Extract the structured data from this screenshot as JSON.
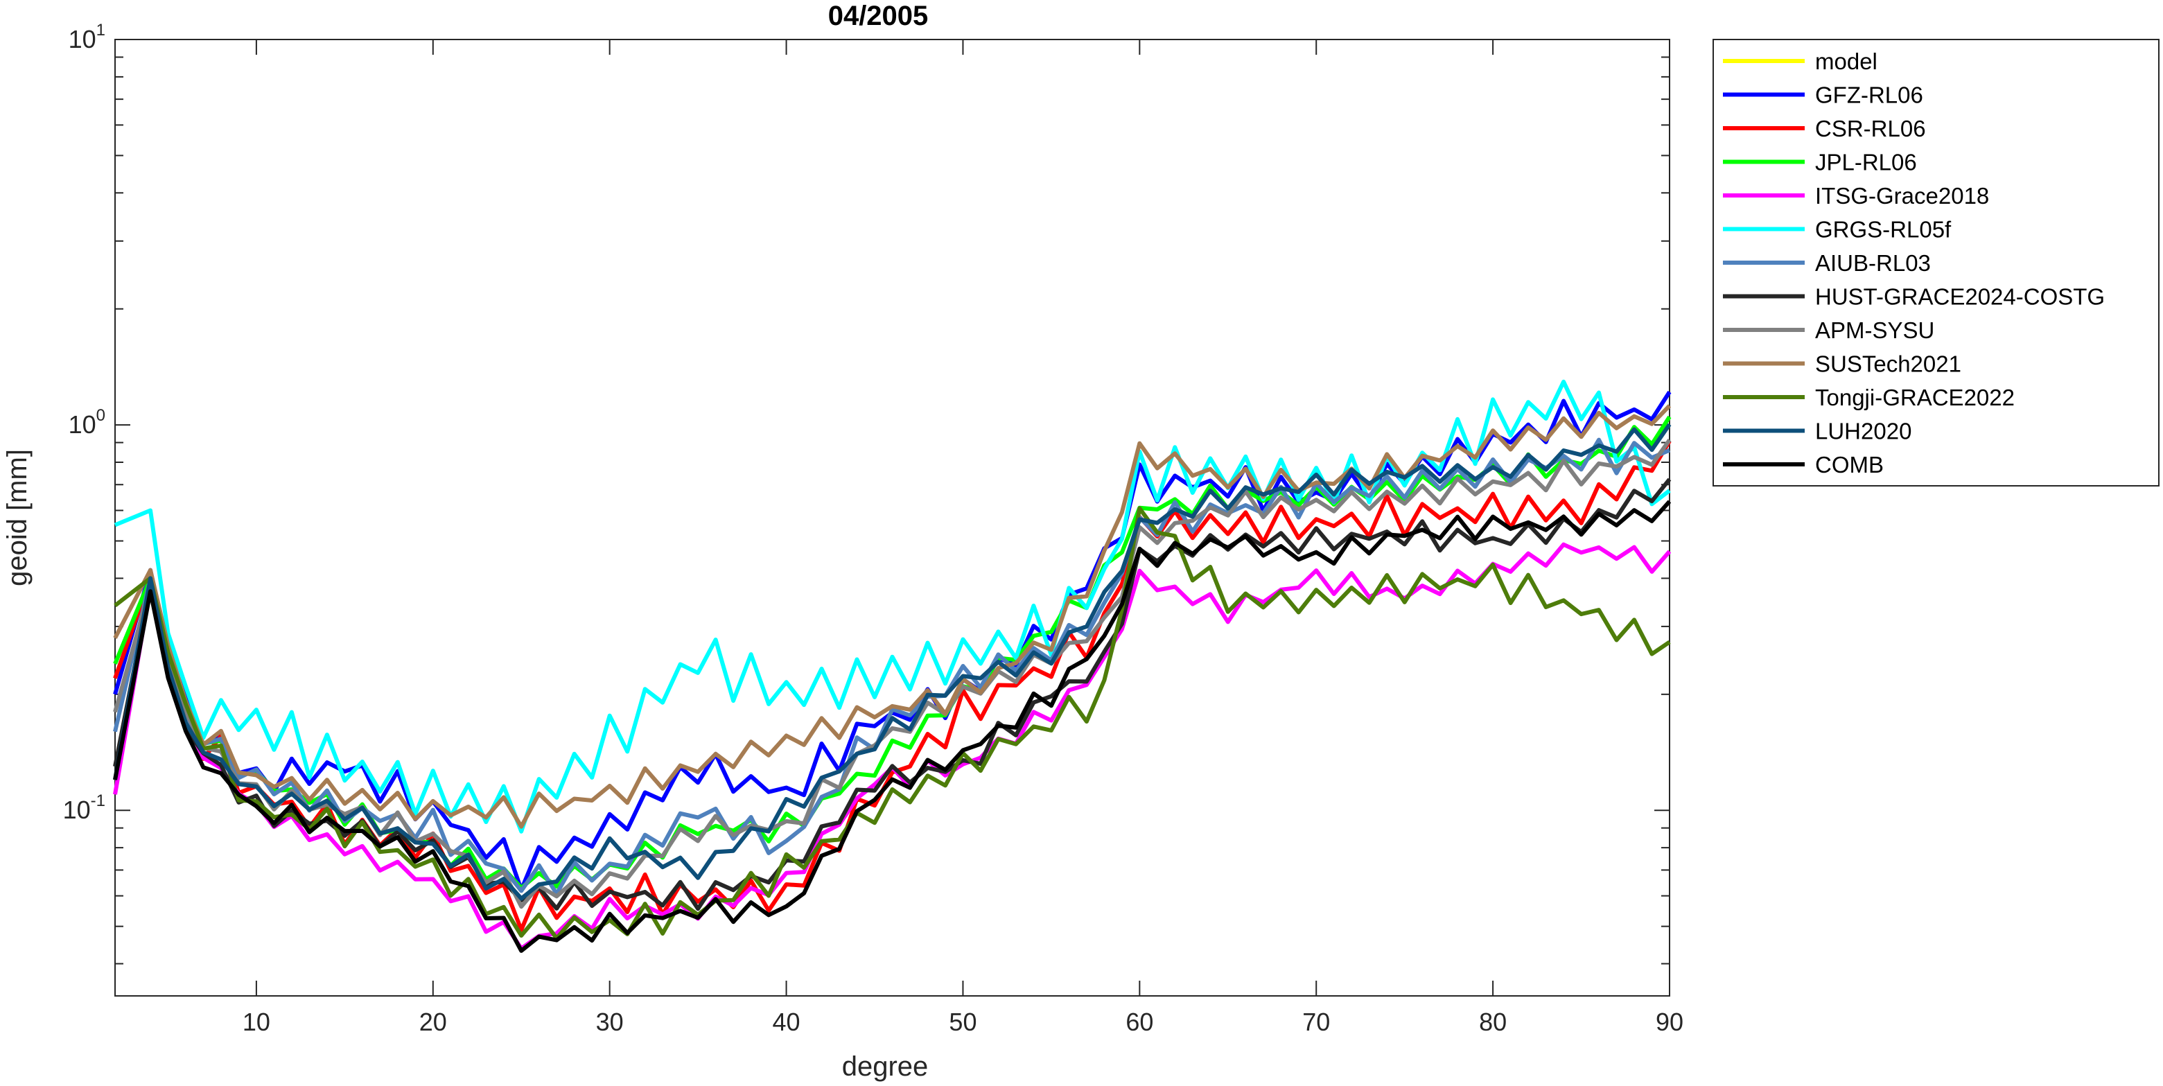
{
  "chart_data": {
    "type": "line",
    "title": "04/2005",
    "xlabel": "degree",
    "ylabel": "geoid [mm]",
    "xlim": [
      2,
      90
    ],
    "ylim": [
      0.033,
      10
    ],
    "yscale": "log",
    "grid": false,
    "legend_position": "outside-right",
    "x_ticks": [
      10,
      20,
      30,
      40,
      50,
      60,
      70,
      80,
      90
    ],
    "y_ticks": [
      {
        "value": 0.1,
        "base": "10",
        "exp": "-1"
      },
      {
        "value": 1,
        "base": "10",
        "exp": "0"
      },
      {
        "value": 10,
        "base": "10",
        "exp": "1"
      }
    ],
    "anchors": [
      2,
      4,
      6,
      10,
      15,
      20,
      25,
      30,
      35,
      40,
      45,
      50,
      55,
      58,
      60,
      65,
      70,
      75,
      80,
      85,
      90
    ],
    "series": [
      {
        "name": "model",
        "color": "#ffff00",
        "values": []
      },
      {
        "name": "GFZ-RL06",
        "color": "#0000ff",
        "values": [
          0.2,
          0.42,
          0.18,
          0.12,
          0.13,
          0.1,
          0.07,
          0.09,
          0.13,
          0.11,
          0.17,
          0.2,
          0.3,
          0.45,
          0.7,
          0.7,
          0.65,
          0.75,
          0.9,
          1.05,
          1.1
        ]
      },
      {
        "name": "CSR-RL06",
        "color": "#ff0000",
        "values": [
          0.22,
          0.4,
          0.17,
          0.11,
          0.09,
          0.08,
          0.055,
          0.06,
          0.06,
          0.06,
          0.11,
          0.18,
          0.24,
          0.3,
          0.55,
          0.55,
          0.55,
          0.58,
          0.6,
          0.6,
          0.85
        ]
      },
      {
        "name": "JPL-RL06",
        "color": "#00ff00",
        "values": [
          0.24,
          0.4,
          0.17,
          0.12,
          0.1,
          0.08,
          0.065,
          0.07,
          0.09,
          0.09,
          0.13,
          0.2,
          0.3,
          0.4,
          0.6,
          0.65,
          0.65,
          0.68,
          0.75,
          0.8,
          1.0
        ]
      },
      {
        "name": "ITSG-Grace2018",
        "color": "#ff00ff",
        "values": [
          0.11,
          0.38,
          0.16,
          0.1,
          0.08,
          0.065,
          0.045,
          0.055,
          0.055,
          0.065,
          0.12,
          0.13,
          0.18,
          0.24,
          0.4,
          0.33,
          0.4,
          0.36,
          0.42,
          0.48,
          0.44
        ]
      },
      {
        "name": "GRGS-RL05f",
        "color": "#00ffff",
        "values": [
          0.55,
          0.6,
          0.18,
          0.17,
          0.13,
          0.11,
          0.1,
          0.15,
          0.25,
          0.2,
          0.22,
          0.25,
          0.3,
          0.4,
          0.75,
          0.75,
          0.7,
          0.75,
          1.0,
          1.2,
          0.6
        ]
      },
      {
        "name": "AIUB-RL03",
        "color": "#4f81bd",
        "values": [
          0.16,
          0.4,
          0.17,
          0.12,
          0.1,
          0.09,
          0.065,
          0.07,
          0.1,
          0.08,
          0.16,
          0.22,
          0.26,
          0.33,
          0.55,
          0.6,
          0.65,
          0.7,
          0.75,
          0.82,
          0.85
        ]
      },
      {
        "name": "HUST-GRACE2024-COSTG",
        "color": "#262626",
        "values": [
          0.13,
          0.38,
          0.16,
          0.1,
          0.09,
          0.08,
          0.06,
          0.06,
          0.06,
          0.07,
          0.12,
          0.13,
          0.2,
          0.24,
          0.45,
          0.5,
          0.5,
          0.52,
          0.5,
          0.55,
          0.7
        ]
      },
      {
        "name": "APM-SYSU",
        "color": "#808080",
        "values": [
          0.18,
          0.38,
          0.17,
          0.11,
          0.1,
          0.085,
          0.06,
          0.065,
          0.09,
          0.09,
          0.15,
          0.2,
          0.25,
          0.3,
          0.5,
          0.62,
          0.62,
          0.65,
          0.7,
          0.75,
          0.85
        ]
      },
      {
        "name": "SUSTech2021",
        "color": "#a67c52",
        "values": [
          0.28,
          0.42,
          0.18,
          0.12,
          0.11,
          0.1,
          0.1,
          0.11,
          0.13,
          0.15,
          0.18,
          0.2,
          0.28,
          0.45,
          0.85,
          0.72,
          0.7,
          0.78,
          0.9,
          1.0,
          1.05
        ]
      },
      {
        "name": "Tongji-GRACE2022",
        "color": "#4e7d0a",
        "values": [
          0.34,
          0.4,
          0.18,
          0.1,
          0.09,
          0.07,
          0.05,
          0.05,
          0.055,
          0.07,
          0.1,
          0.13,
          0.17,
          0.2,
          0.6,
          0.35,
          0.35,
          0.38,
          0.4,
          0.33,
          0.26
        ]
      },
      {
        "name": "LUH2020",
        "color": "#0d4f7a",
        "values": [
          0.12,
          0.4,
          0.16,
          0.11,
          0.1,
          0.08,
          0.06,
          0.08,
          0.07,
          0.1,
          0.15,
          0.22,
          0.25,
          0.35,
          0.55,
          0.65,
          0.7,
          0.75,
          0.75,
          0.85,
          0.95
        ]
      },
      {
        "name": "COMB",
        "color": "#000000",
        "values": [
          0.12,
          0.37,
          0.15,
          0.1,
          0.09,
          0.075,
          0.045,
          0.05,
          0.055,
          0.055,
          0.11,
          0.14,
          0.2,
          0.28,
          0.45,
          0.5,
          0.45,
          0.52,
          0.55,
          0.55,
          0.6
        ]
      }
    ]
  }
}
